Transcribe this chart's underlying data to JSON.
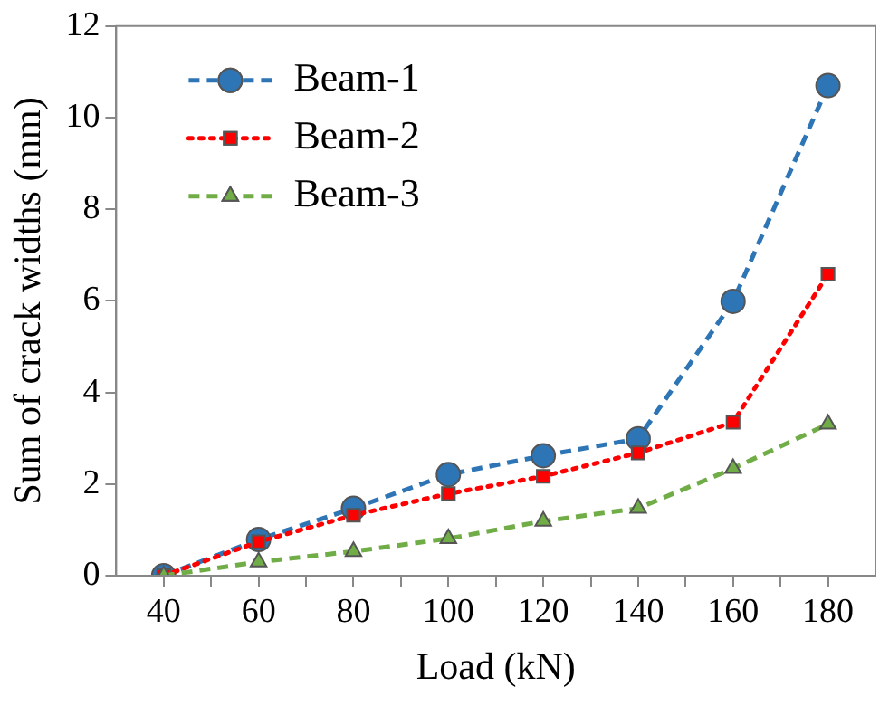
{
  "chart_data": {
    "type": "line",
    "xlabel": "Load (kN)",
    "ylabel": "Sum of crack widths (mm)",
    "x": [
      40,
      60,
      80,
      100,
      120,
      140,
      160,
      180
    ],
    "xlim": [
      30,
      190
    ],
    "xticks": [
      40,
      {
        "value": 50,
        "label": null
      },
      60,
      {
        "value": 70,
        "label": null
      },
      80,
      {
        "value": 90,
        "label": null
      },
      100,
      {
        "value": 110,
        "label": null
      },
      120,
      {
        "value": 130,
        "label": null
      },
      140,
      {
        "value": 150,
        "label": null
      },
      160,
      {
        "value": 170,
        "label": null
      },
      180
    ],
    "ylim": [
      0,
      12
    ],
    "yticks": [
      0,
      2,
      4,
      6,
      8,
      10,
      12
    ],
    "grid": false,
    "legend": "top left",
    "series": [
      {
        "name": "Beam-1",
        "color": "#2e75b6",
        "marker": "circle",
        "line_style": "dashed",
        "values": [
          0,
          0.79,
          1.47,
          2.21,
          2.62,
          2.99,
          5.99,
          10.7
        ]
      },
      {
        "name": "Beam-2",
        "color": "#ff0000",
        "marker": "square",
        "line_style": "dotted",
        "values": [
          0,
          0.74,
          1.32,
          1.79,
          2.17,
          2.68,
          3.35,
          6.58
        ]
      },
      {
        "name": "Beam-3",
        "color": "#70ad47",
        "marker": "triangle",
        "line_style": "dashed",
        "values": [
          0,
          0.3,
          0.53,
          0.81,
          1.19,
          1.47,
          2.34,
          3.31
        ]
      }
    ]
  }
}
